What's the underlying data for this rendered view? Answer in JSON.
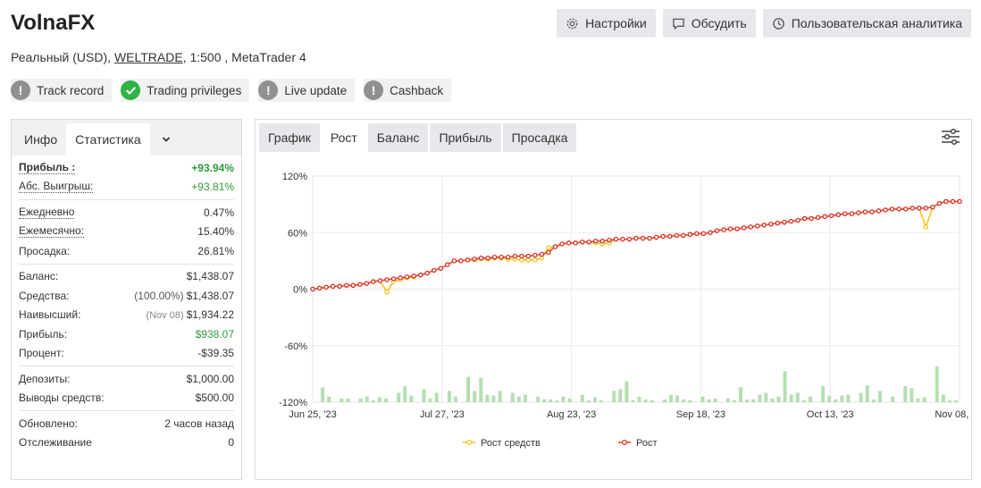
{
  "header": {
    "title": "VolnaFX",
    "account_prefix": "Реальный (USD), ",
    "broker": "WELTRADE",
    "account_suffix": ", 1:500 , MetaTrader 4",
    "buttons": {
      "settings": "Настройки",
      "discuss": "Обсудить",
      "analytics": "Пользовательская аналитика"
    }
  },
  "badges": [
    {
      "label": "Track record",
      "status": "warning"
    },
    {
      "label": "Trading privileges",
      "status": "verified"
    },
    {
      "label": "Live update",
      "status": "warning"
    },
    {
      "label": "Cashback",
      "status": "warning"
    }
  ],
  "left_tabs": {
    "info": "Инфо",
    "stats": "Статистика"
  },
  "stats": {
    "profit_label": "Прибыль :",
    "profit_value": "+93.94%",
    "abs_gain_label": "Абс. Выигрыш:",
    "abs_gain_value": "+93.81%",
    "daily_label": "Ежедневно",
    "daily_value": "0.47%",
    "monthly_label": "Ежемесячно:",
    "monthly_value": "15.40%",
    "drawdown_label": "Просадка:",
    "drawdown_value": "26.81%",
    "balance_label": "Баланс:",
    "balance_value": "$1,438.07",
    "equity_label": "Средства:",
    "equity_pct": "(100.00%)",
    "equity_value": "$1,438.07",
    "highest_label": "Наивысший:",
    "highest_date": "(Nov 08)",
    "highest_value": "$1,934.22",
    "profit2_label": "Прибыль:",
    "profit2_value": "$938.07",
    "interest_label": "Процент:",
    "interest_value": "-$39.35",
    "deposits_label": "Депозиты:",
    "deposits_value": "$1,000.00",
    "withdrawals_label": "Выводы средств:",
    "withdrawals_value": "$500.00",
    "updated_label": "Обновлено:",
    "updated_value": "2 часов назад",
    "tracking_label": "Отслеживание",
    "tracking_value": "0"
  },
  "chart_tabs": [
    "График",
    "Рост",
    "Баланс",
    "Прибыль",
    "Просадка"
  ],
  "chart_active_tab": "Рост",
  "chart_data": {
    "type": "line",
    "y_ticks": [
      "120%",
      "60%",
      "0%",
      "-60%",
      "-120%"
    ],
    "ylim": [
      -120,
      120
    ],
    "x_ticks": [
      "Jun 25, '23",
      "Jul 27, '23",
      "Aug 23, '23",
      "Sep 18, '23",
      "Oct 13, '23",
      "Nov 08, '23"
    ],
    "x_tick_index": [
      0,
      20,
      40,
      60,
      80,
      100
    ],
    "grid": true,
    "legend_position": "bottom",
    "colors": {
      "equity": "#f2c318",
      "growth": "#e8502a",
      "growth_marker": "#d7262a",
      "bars": "#b5deb1"
    },
    "series": [
      {
        "name": "Рост средств",
        "values": [
          0,
          1,
          2,
          3,
          3,
          4,
          4,
          5,
          6,
          8,
          9,
          -3,
          8,
          10,
          12,
          13,
          15,
          17,
          20,
          22,
          26,
          30,
          30,
          31,
          31,
          32,
          32,
          33,
          33,
          32,
          32,
          31,
          31,
          31,
          33,
          44,
          45,
          48,
          49,
          49,
          50,
          50,
          49,
          48,
          49,
          53,
          53,
          53,
          54,
          54,
          54,
          55,
          56,
          56,
          57,
          57,
          58,
          59,
          59,
          60,
          62,
          63,
          64,
          64,
          65,
          66,
          67,
          68,
          69,
          70,
          71,
          72,
          73,
          75,
          75,
          76,
          77,
          78,
          79,
          80,
          80,
          81,
          82,
          82,
          83,
          84,
          85,
          85,
          85,
          86,
          86,
          66,
          87,
          91,
          93,
          93,
          93
        ]
      },
      {
        "name": "Рост",
        "values": [
          0,
          1,
          2,
          3,
          3,
          4,
          4,
          5,
          6,
          8,
          9,
          10,
          11,
          12,
          13,
          14,
          15,
          17,
          20,
          22,
          26,
          30,
          30,
          31,
          32,
          33,
          33,
          34,
          34,
          34,
          35,
          35,
          35,
          36,
          37,
          39,
          45,
          48,
          49,
          49,
          50,
          50,
          51,
          51,
          52,
          53,
          53,
          53,
          54,
          54,
          54,
          55,
          56,
          56,
          57,
          57,
          58,
          59,
          59,
          60,
          62,
          63,
          64,
          64,
          65,
          66,
          67,
          68,
          69,
          70,
          71,
          72,
          73,
          75,
          75,
          76,
          77,
          78,
          79,
          80,
          80,
          81,
          82,
          82,
          83,
          84,
          85,
          85,
          85,
          86,
          86,
          86,
          87,
          91,
          93,
          93,
          93
        ]
      }
    ],
    "bars": [
      0,
      16,
      6,
      0,
      4,
      4,
      0,
      4,
      6,
      2,
      5,
      4,
      0,
      10,
      17,
      7,
      0,
      14,
      4,
      10,
      0,
      12,
      6,
      0,
      27,
      12,
      26,
      8,
      7,
      12,
      0,
      10,
      6,
      8,
      0,
      6,
      3,
      3,
      2,
      6,
      4,
      0,
      8,
      2,
      5,
      2,
      0,
      12,
      14,
      22,
      2,
      6,
      3,
      2,
      0,
      3,
      8,
      7,
      3,
      2,
      0,
      6,
      3,
      4,
      0,
      4,
      2,
      16,
      3,
      3,
      8,
      10,
      4,
      6,
      33,
      8,
      10,
      2,
      6,
      0,
      17,
      7,
      3,
      7,
      8,
      0,
      10,
      18,
      3,
      12,
      0,
      6,
      0,
      17,
      15,
      4,
      5,
      0,
      38,
      8,
      2,
      2
    ]
  }
}
